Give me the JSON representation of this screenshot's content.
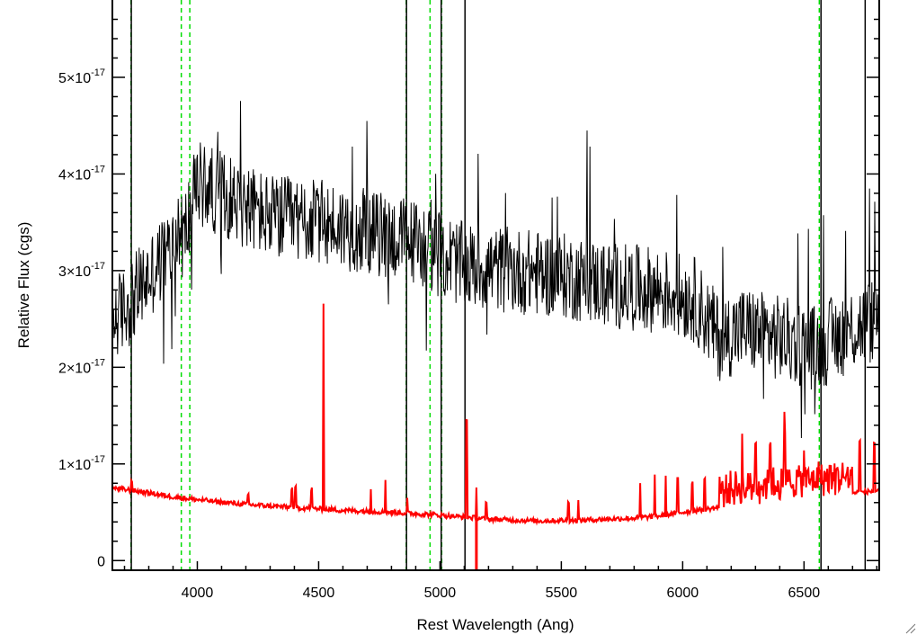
{
  "chart_data": {
    "type": "line",
    "xlabel": "Rest Wavelength (Ang)",
    "ylabel": "Relative Flux (cgs)",
    "xlim": [
      3650,
      6810
    ],
    "ylim": [
      -0.1,
      5.8
    ],
    "y_multiplier_note": "×10^-17",
    "x_ticks": [
      {
        "value": 4000,
        "label": "4000"
      },
      {
        "value": 4500,
        "label": "4500"
      },
      {
        "value": 5000,
        "label": "5000"
      },
      {
        "value": 5500,
        "label": "5500"
      },
      {
        "value": 6000,
        "label": "6000"
      },
      {
        "value": 6500,
        "label": "6500"
      }
    ],
    "y_ticks": [
      {
        "value": 0,
        "base": "0",
        "exp": ""
      },
      {
        "value": 1,
        "base": "1×10",
        "exp": "-17"
      },
      {
        "value": 2,
        "base": "2×10",
        "exp": "-17"
      },
      {
        "value": 3,
        "base": "3×10",
        "exp": "-17"
      },
      {
        "value": 4,
        "base": "4×10",
        "exp": "-17"
      },
      {
        "value": 5,
        "base": "5×10",
        "exp": "-17"
      }
    ],
    "series": [
      {
        "color": "#000000",
        "stroke_width": 1,
        "noise_amplitude": 0.45,
        "x": [
          3650,
          3700,
          3760,
          3850,
          3950,
          4000,
          4100,
          4300,
          4500,
          4700,
          4900,
          5100,
          5300,
          5500,
          5700,
          5900,
          6050,
          6150,
          6250,
          6400,
          6550,
          6700,
          6800
        ],
        "y": [
          2.5,
          2.6,
          2.8,
          3.1,
          3.4,
          3.9,
          3.8,
          3.55,
          3.5,
          3.4,
          3.3,
          3.05,
          3.0,
          2.95,
          2.85,
          2.8,
          2.7,
          2.3,
          2.4,
          2.3,
          2.2,
          2.4,
          2.5
        ]
      },
      {
        "color": "#ff0000",
        "stroke_width": 2,
        "x": [
          3650,
          3750,
          3900,
          4000,
          4200,
          4400,
          4600,
          4800,
          5000,
          5200,
          5400,
          5600,
          5800,
          5900,
          6000,
          6150,
          6300,
          6500,
          6700,
          6800
        ],
        "y": [
          0.75,
          0.72,
          0.66,
          0.63,
          0.58,
          0.55,
          0.52,
          0.5,
          0.47,
          0.43,
          0.41,
          0.42,
          0.44,
          0.46,
          0.5,
          0.55,
          0.6,
          0.65,
          0.7,
          0.72
        ]
      }
    ],
    "red_spikes": [
      {
        "x": 3730,
        "h": 0.1
      },
      {
        "x": 4210,
        "h": 0.1
      },
      {
        "x": 4390,
        "h": 0.2
      },
      {
        "x": 4405,
        "h": 0.2
      },
      {
        "x": 4470,
        "h": 0.2
      },
      {
        "x": 4520,
        "h": 1.1
      },
      {
        "x": 4520,
        "h": 1.05
      },
      {
        "x": 4715,
        "h": 0.25
      },
      {
        "x": 4775,
        "h": 0.35
      },
      {
        "x": 4865,
        "h": 0.15
      },
      {
        "x": 5110,
        "h": 1.0
      },
      {
        "x": 5150,
        "h": 0.3
      },
      {
        "x": 5190,
        "h": 0.15
      },
      {
        "x": 5530,
        "h": 0.2
      },
      {
        "x": 5570,
        "h": 0.2
      },
      {
        "x": 5825,
        "h": 0.35
      },
      {
        "x": 5885,
        "h": 0.45
      },
      {
        "x": 5930,
        "h": 0.4
      },
      {
        "x": 5980,
        "h": 0.35
      },
      {
        "x": 6040,
        "h": 0.3
      },
      {
        "x": 6090,
        "h": 0.3
      },
      {
        "x": 6245,
        "h": 0.45
      },
      {
        "x": 6300,
        "h": 0.55
      },
      {
        "x": 6360,
        "h": 0.55
      },
      {
        "x": 6420,
        "h": 0.6
      },
      {
        "x": 6500,
        "h": 0.4
      },
      {
        "x": 6560,
        "h": 0.3
      },
      {
        "x": 6730,
        "h": 0.55
      },
      {
        "x": 6790,
        "h": 0.5
      }
    ],
    "red_dip": {
      "x": 5150,
      "bottom": -0.1
    },
    "reference_lines": {
      "color": "#00dd00",
      "style": "dashed",
      "x": [
        3727,
        3934,
        3969,
        4861,
        4959,
        5007,
        6563
      ]
    },
    "black_vertical_lines": {
      "color": "#000000",
      "x": [
        3728,
        4862,
        5005,
        5103,
        6570,
        6752
      ]
    }
  }
}
